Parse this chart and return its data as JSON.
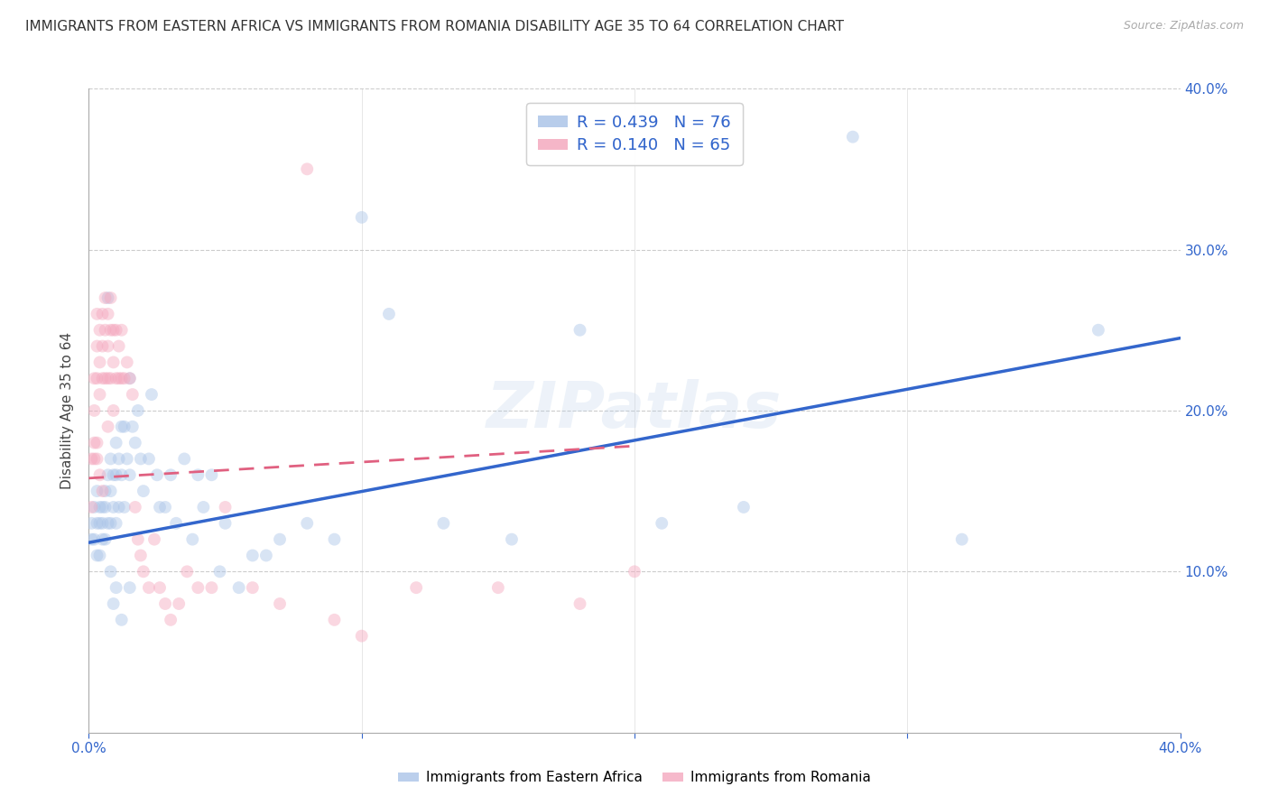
{
  "title": "IMMIGRANTS FROM EASTERN AFRICA VS IMMIGRANTS FROM ROMANIA DISABILITY AGE 35 TO 64 CORRELATION CHART",
  "source": "Source: ZipAtlas.com",
  "ylabel_left": "Disability Age 35 to 64",
  "xlim": [
    0.0,
    0.4
  ],
  "ylim": [
    0.0,
    0.4
  ],
  "xticks": [
    0.0,
    0.1,
    0.2,
    0.3,
    0.4
  ],
  "yticks": [
    0.0,
    0.1,
    0.2,
    0.3,
    0.4
  ],
  "xtick_labels": [
    "0.0%",
    "",
    "",
    "",
    "40.0%"
  ],
  "ytick_labels_right": [
    "",
    "10.0%",
    "20.0%",
    "30.0%",
    "40.0%"
  ],
  "grid_color": "#cccccc",
  "background_color": "#ffffff",
  "series1_color": "#aac4e8",
  "series2_color": "#f4a8be",
  "series1_label": "Immigrants from Eastern Africa",
  "series2_label": "Immigrants from Romania",
  "series1_R": "0.439",
  "series1_N": "76",
  "series2_R": "0.140",
  "series2_N": "65",
  "series1_x": [
    0.001,
    0.001,
    0.002,
    0.002,
    0.003,
    0.003,
    0.003,
    0.004,
    0.004,
    0.004,
    0.005,
    0.005,
    0.005,
    0.006,
    0.006,
    0.006,
    0.007,
    0.007,
    0.008,
    0.008,
    0.008,
    0.009,
    0.009,
    0.01,
    0.01,
    0.01,
    0.011,
    0.011,
    0.012,
    0.012,
    0.013,
    0.013,
    0.014,
    0.015,
    0.015,
    0.016,
    0.017,
    0.018,
    0.019,
    0.02,
    0.022,
    0.023,
    0.025,
    0.026,
    0.028,
    0.03,
    0.032,
    0.035,
    0.038,
    0.04,
    0.042,
    0.045,
    0.048,
    0.05,
    0.055,
    0.06,
    0.065,
    0.07,
    0.08,
    0.09,
    0.1,
    0.11,
    0.13,
    0.155,
    0.18,
    0.21,
    0.24,
    0.28,
    0.32,
    0.37,
    0.007,
    0.008,
    0.009,
    0.01,
    0.012,
    0.015
  ],
  "series1_y": [
    0.13,
    0.12,
    0.14,
    0.12,
    0.15,
    0.13,
    0.11,
    0.14,
    0.13,
    0.11,
    0.14,
    0.13,
    0.12,
    0.15,
    0.14,
    0.12,
    0.16,
    0.13,
    0.17,
    0.15,
    0.13,
    0.16,
    0.14,
    0.18,
    0.16,
    0.13,
    0.17,
    0.14,
    0.19,
    0.16,
    0.19,
    0.14,
    0.17,
    0.22,
    0.16,
    0.19,
    0.18,
    0.2,
    0.17,
    0.15,
    0.17,
    0.21,
    0.16,
    0.14,
    0.14,
    0.16,
    0.13,
    0.17,
    0.12,
    0.16,
    0.14,
    0.16,
    0.1,
    0.13,
    0.09,
    0.11,
    0.11,
    0.12,
    0.13,
    0.12,
    0.32,
    0.26,
    0.13,
    0.12,
    0.25,
    0.13,
    0.14,
    0.37,
    0.12,
    0.25,
    0.27,
    0.1,
    0.08,
    0.09,
    0.07,
    0.09
  ],
  "series2_x": [
    0.001,
    0.001,
    0.002,
    0.002,
    0.002,
    0.003,
    0.003,
    0.003,
    0.003,
    0.004,
    0.004,
    0.004,
    0.005,
    0.005,
    0.005,
    0.006,
    0.006,
    0.006,
    0.007,
    0.007,
    0.007,
    0.007,
    0.008,
    0.008,
    0.008,
    0.009,
    0.009,
    0.009,
    0.01,
    0.01,
    0.011,
    0.011,
    0.012,
    0.012,
    0.013,
    0.014,
    0.015,
    0.016,
    0.017,
    0.018,
    0.019,
    0.02,
    0.022,
    0.024,
    0.026,
    0.028,
    0.03,
    0.033,
    0.036,
    0.04,
    0.045,
    0.05,
    0.06,
    0.07,
    0.08,
    0.09,
    0.1,
    0.12,
    0.15,
    0.18,
    0.2,
    0.002,
    0.003,
    0.004,
    0.005
  ],
  "series2_y": [
    0.17,
    0.14,
    0.22,
    0.2,
    0.17,
    0.26,
    0.24,
    0.22,
    0.18,
    0.25,
    0.23,
    0.21,
    0.26,
    0.24,
    0.22,
    0.27,
    0.25,
    0.22,
    0.26,
    0.24,
    0.22,
    0.19,
    0.27,
    0.25,
    0.22,
    0.25,
    0.23,
    0.2,
    0.25,
    0.22,
    0.24,
    0.22,
    0.25,
    0.22,
    0.22,
    0.23,
    0.22,
    0.21,
    0.14,
    0.12,
    0.11,
    0.1,
    0.09,
    0.12,
    0.09,
    0.08,
    0.07,
    0.08,
    0.1,
    0.09,
    0.09,
    0.14,
    0.09,
    0.08,
    0.35,
    0.07,
    0.06,
    0.09,
    0.09,
    0.08,
    0.1,
    0.18,
    0.17,
    0.16,
    0.15
  ],
  "series1_line_x0": 0.0,
  "series1_line_y0": 0.118,
  "series1_line_x1": 0.4,
  "series1_line_y1": 0.245,
  "series2_line_x0": 0.0,
  "series2_line_y0": 0.158,
  "series2_line_x1": 0.2,
  "series2_line_y1": 0.178,
  "watermark_text": "ZIPatlas",
  "title_fontsize": 11,
  "axis_label_fontsize": 11,
  "tick_fontsize": 11,
  "marker_size": 100,
  "marker_alpha": 0.45
}
